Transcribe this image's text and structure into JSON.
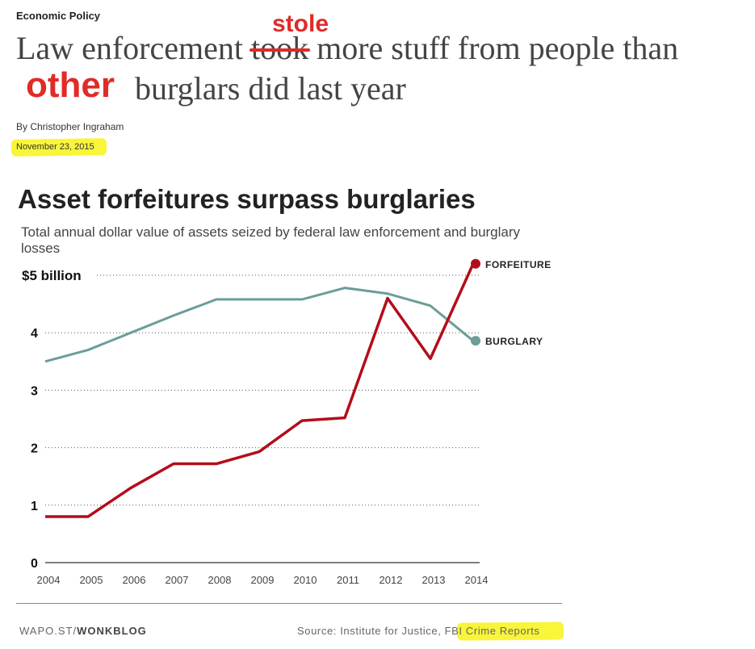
{
  "article": {
    "section": "Economic Policy",
    "headline_line1_before": "Law enforcement",
    "headline_struck": "took",
    "headline_line1_after": "more stuff  from people than",
    "headline_line2": "burglars did last year",
    "annotation_replacement": "stole",
    "annotation_insert": "other",
    "byline": "By Christopher Ingraham",
    "date": "November 23, 2015"
  },
  "chart_data": {
    "type": "line",
    "title": "Asset forfeitures surpass burglaries",
    "subtitle": "Total annual dollar value of assets seized by federal law enforcement and burglary losses",
    "x": [
      2004,
      2005,
      2006,
      2007,
      2008,
      2009,
      2010,
      2011,
      2012,
      2013,
      2014
    ],
    "series": [
      {
        "name": "FORFEITURE",
        "color": "#b30d1b",
        "values": [
          0.8,
          0.8,
          1.3,
          1.72,
          1.72,
          1.93,
          2.47,
          2.52,
          4.6,
          3.55,
          5.2
        ]
      },
      {
        "name": "BURGLARY",
        "color": "#6b9e98",
        "values": [
          3.5,
          3.7,
          4.0,
          4.3,
          4.58,
          4.58,
          4.58,
          4.78,
          4.68,
          4.47,
          3.86
        ]
      }
    ],
    "y_ticks": [
      {
        "value": 0,
        "label": "0"
      },
      {
        "value": 1,
        "label": "1"
      },
      {
        "value": 2,
        "label": "2"
      },
      {
        "value": 3,
        "label": "3"
      },
      {
        "value": 4,
        "label": "4"
      },
      {
        "value": 5,
        "label": "$5 billion"
      }
    ],
    "x_tick_labels": [
      "2004",
      "2005",
      "2006",
      "2007",
      "2008",
      "2009",
      "2010",
      "2011",
      "2012",
      "2013",
      "2014"
    ],
    "ylim": [
      0,
      5.3
    ],
    "grid": true,
    "legend": "direct labels at line ends"
  },
  "footer": {
    "credit_light": "WAPO.ST/",
    "credit_bold": "WONKBLOG",
    "source_prefix": "Source: Institute for Justice, ",
    "source_highlighted": "FBI Crime Reports"
  },
  "colors": {
    "annotation_red": "#e02b27",
    "highlight_yellow": "#f8f53a"
  }
}
